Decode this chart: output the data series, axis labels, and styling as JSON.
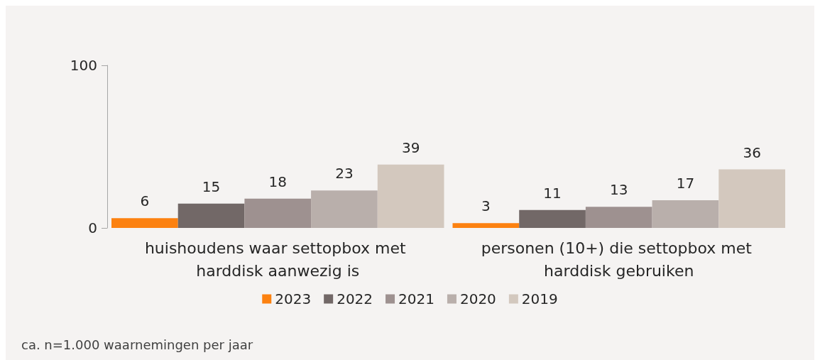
{
  "chart_data": {
    "type": "bar",
    "categories": [
      "huishoudens waar settopbox met harddisk aanwezig is",
      "personen (10+) die settopbox met harddisk gebruiken"
    ],
    "series": [
      {
        "name": "2023",
        "color": "#fc8110",
        "values": [
          6,
          3
        ]
      },
      {
        "name": "2022",
        "color": "#726867",
        "values": [
          15,
          11
        ]
      },
      {
        "name": "2021",
        "color": "#9e9190",
        "values": [
          18,
          13
        ]
      },
      {
        "name": "2020",
        "color": "#b9afab",
        "values": [
          23,
          17
        ]
      },
      {
        "name": "2019",
        "color": "#d3c8be",
        "values": [
          39,
          36
        ]
      }
    ],
    "ylim": [
      0,
      100
    ],
    "yticks": [
      0,
      100
    ],
    "grid": false,
    "legend": "bottom",
    "data_labels": true,
    "annotations": [
      "ca. n=1.000 waarnemingen per jaar"
    ]
  }
}
